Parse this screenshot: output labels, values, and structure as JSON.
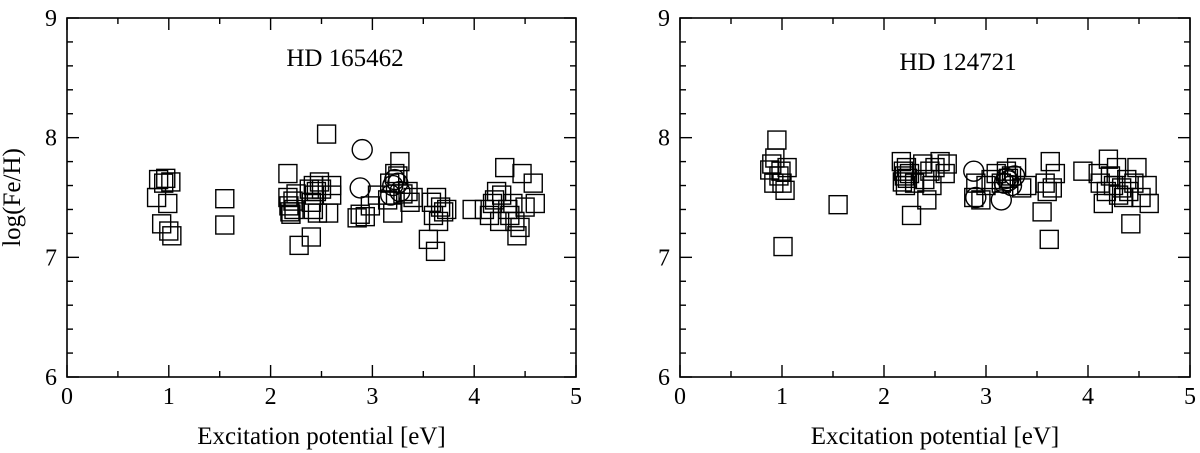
{
  "chart_data": [
    {
      "type": "scatter",
      "title": "HD 165462",
      "xlabel": "Excitation potential [eV]",
      "ylabel": "log(Fe/H)",
      "xlim": [
        0,
        5
      ],
      "ylim": [
        6,
        9
      ],
      "xticks": [
        "0",
        "1",
        "2",
        "3",
        "4",
        "5"
      ],
      "yticks": [
        "6",
        "7",
        "8",
        "9"
      ],
      "grid": false,
      "series": [
        {
          "marker": "square",
          "points": [
            [
              0.88,
              7.5
            ],
            [
              0.9,
              7.65
            ],
            [
              0.93,
              7.28
            ],
            [
              0.95,
              7.62
            ],
            [
              0.97,
              7.66
            ],
            [
              0.99,
              7.45
            ],
            [
              1.0,
              7.22
            ],
            [
              1.02,
              7.63
            ],
            [
              1.03,
              7.18
            ],
            [
              1.55,
              7.49
            ],
            [
              1.55,
              7.27
            ],
            [
              2.17,
              7.7
            ],
            [
              2.17,
              7.5
            ],
            [
              2.18,
              7.43
            ],
            [
              2.19,
              7.38
            ],
            [
              2.2,
              7.36
            ],
            [
              2.22,
              7.47
            ],
            [
              2.23,
              7.4
            ],
            [
              2.25,
              7.53
            ],
            [
              2.28,
              7.1
            ],
            [
              2.38,
              7.57
            ],
            [
              2.4,
              7.17
            ],
            [
              2.4,
              7.46
            ],
            [
              2.42,
              7.6
            ],
            [
              2.42,
              7.4
            ],
            [
              2.43,
              7.52
            ],
            [
              2.45,
              7.55
            ],
            [
              2.46,
              7.37
            ],
            [
              2.48,
              7.63
            ],
            [
              2.5,
              7.57
            ],
            [
              2.55,
              8.03
            ],
            [
              2.57,
              7.37
            ],
            [
              2.6,
              7.52
            ],
            [
              2.6,
              7.6
            ],
            [
              2.85,
              7.33
            ],
            [
              2.88,
              7.36
            ],
            [
              2.93,
              7.34
            ],
            [
              2.98,
              7.43
            ],
            [
              3.05,
              7.52
            ],
            [
              3.15,
              7.48
            ],
            [
              3.17,
              7.62
            ],
            [
              3.2,
              7.37
            ],
            [
              3.22,
              7.7
            ],
            [
              3.25,
              7.68
            ],
            [
              3.27,
              7.8
            ],
            [
              3.3,
              7.53
            ],
            [
              3.35,
              7.55
            ],
            [
              3.37,
              7.46
            ],
            [
              3.4,
              7.5
            ],
            [
              3.55,
              7.15
            ],
            [
              3.58,
              7.46
            ],
            [
              3.6,
              7.35
            ],
            [
              3.62,
              7.05
            ],
            [
              3.63,
              7.5
            ],
            [
              3.65,
              7.3
            ],
            [
              3.67,
              7.42
            ],
            [
              3.7,
              7.38
            ],
            [
              3.73,
              7.4
            ],
            [
              3.98,
              7.4
            ],
            [
              4.1,
              7.4
            ],
            [
              4.15,
              7.35
            ],
            [
              4.18,
              7.45
            ],
            [
              4.2,
              7.48
            ],
            [
              4.22,
              7.55
            ],
            [
              4.25,
              7.3
            ],
            [
              4.27,
              7.52
            ],
            [
              4.3,
              7.75
            ],
            [
              4.33,
              7.4
            ],
            [
              4.35,
              7.35
            ],
            [
              4.38,
              7.45
            ],
            [
              4.4,
              7.3
            ],
            [
              4.42,
              7.18
            ],
            [
              4.45,
              7.25
            ],
            [
              4.47,
              7.7
            ],
            [
              4.5,
              7.42
            ],
            [
              4.58,
              7.62
            ],
            [
              4.6,
              7.45
            ]
          ]
        },
        {
          "marker": "circle",
          "points": [
            [
              2.88,
              7.58
            ],
            [
              2.9,
              7.9
            ],
            [
              3.18,
              7.52
            ],
            [
              3.2,
              7.6
            ],
            [
              3.22,
              7.65
            ],
            [
              3.25,
              7.62
            ],
            [
              3.27,
              7.55
            ]
          ]
        }
      ]
    },
    {
      "type": "scatter",
      "title": "HD 124721",
      "xlabel": "Excitation potential [eV]",
      "ylabel": "",
      "xlim": [
        0,
        5
      ],
      "ylim": [
        6,
        9
      ],
      "xticks": [
        "0",
        "1",
        "2",
        "3",
        "4",
        "5"
      ],
      "yticks": [
        "6",
        "7",
        "8",
        "9"
      ],
      "grid": false,
      "series": [
        {
          "marker": "square",
          "points": [
            [
              0.88,
              7.73
            ],
            [
              0.9,
              7.78
            ],
            [
              0.92,
              7.62
            ],
            [
              0.93,
              7.83
            ],
            [
              0.95,
              7.98
            ],
            [
              0.97,
              7.68
            ],
            [
              0.99,
              7.72
            ],
            [
              1.0,
              7.62
            ],
            [
              1.01,
              7.09
            ],
            [
              1.03,
              7.56
            ],
            [
              1.05,
              7.75
            ],
            [
              1.55,
              7.44
            ],
            [
              2.17,
              7.8
            ],
            [
              2.18,
              7.63
            ],
            [
              2.19,
              7.72
            ],
            [
              2.2,
              7.68
            ],
            [
              2.21,
              7.6
            ],
            [
              2.22,
              7.75
            ],
            [
              2.23,
              7.66
            ],
            [
              2.25,
              7.7
            ],
            [
              2.27,
              7.35
            ],
            [
              2.3,
              7.62
            ],
            [
              2.38,
              7.78
            ],
            [
              2.4,
              7.65
            ],
            [
              2.42,
              7.48
            ],
            [
              2.45,
              7.72
            ],
            [
              2.47,
              7.6
            ],
            [
              2.5,
              7.75
            ],
            [
              2.55,
              7.8
            ],
            [
              2.6,
              7.7
            ],
            [
              2.62,
              7.78
            ],
            [
              2.88,
              7.5
            ],
            [
              2.9,
              7.62
            ],
            [
              2.95,
              7.48
            ],
            [
              3.0,
              7.6
            ],
            [
              3.05,
              7.65
            ],
            [
              3.1,
              7.7
            ],
            [
              3.15,
              7.62
            ],
            [
              3.2,
              7.72
            ],
            [
              3.22,
              7.66
            ],
            [
              3.25,
              7.68
            ],
            [
              3.3,
              7.75
            ],
            [
              3.35,
              7.58
            ],
            [
              3.4,
              7.6
            ],
            [
              3.55,
              7.38
            ],
            [
              3.58,
              7.62
            ],
            [
              3.6,
              7.55
            ],
            [
              3.62,
              7.15
            ],
            [
              3.63,
              7.8
            ],
            [
              3.65,
              7.58
            ],
            [
              3.68,
              7.7
            ],
            [
              3.95,
              7.72
            ],
            [
              4.1,
              7.7
            ],
            [
              4.12,
              7.62
            ],
            [
              4.15,
              7.45
            ],
            [
              4.18,
              7.55
            ],
            [
              4.2,
              7.82
            ],
            [
              4.22,
              7.68
            ],
            [
              4.25,
              7.6
            ],
            [
              4.28,
              7.75
            ],
            [
              4.3,
              7.52
            ],
            [
              4.33,
              7.58
            ],
            [
              4.35,
              7.5
            ],
            [
              4.38,
              7.65
            ],
            [
              4.4,
              7.55
            ],
            [
              4.42,
              7.28
            ],
            [
              4.45,
              7.62
            ],
            [
              4.48,
              7.75
            ],
            [
              4.52,
              7.5
            ],
            [
              4.58,
              7.6
            ],
            [
              4.6,
              7.45
            ]
          ]
        },
        {
          "marker": "circle",
          "points": [
            [
              2.88,
              7.72
            ],
            [
              2.9,
              7.5
            ],
            [
              3.15,
              7.48
            ],
            [
              3.18,
              7.62
            ],
            [
              3.2,
              7.66
            ],
            [
              3.22,
              7.64
            ],
            [
              3.25,
              7.6
            ],
            [
              3.28,
              7.68
            ]
          ]
        }
      ]
    }
  ]
}
